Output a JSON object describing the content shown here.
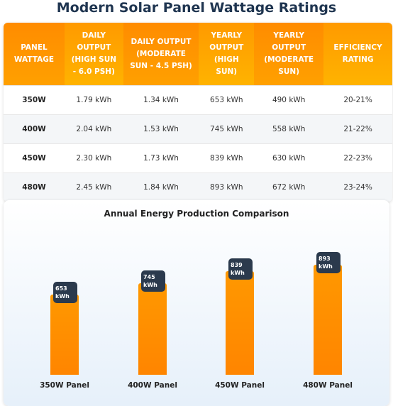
{
  "title": "Modern Solar Panel Wattage Ratings",
  "table": {
    "headers": [
      "PANEL WATTAGE",
      "DAILY OUTPUT (HIGH SUN - 6.0 PSH)",
      "DAILY OUTPUT (MODERATE SUN - 4.5 PSH)",
      "YEARLY OUTPUT (HIGH SUN)",
      "YEARLY OUTPUT (MODERATE SUN)",
      "EFFICIENCY RATING"
    ],
    "rows": [
      [
        "350W",
        "1.79 kWh",
        "1.34 kWh",
        "653 kWh",
        "490 kWh",
        "20-21%"
      ],
      [
        "400W",
        "2.04 kWh",
        "1.53 kWh",
        "745 kWh",
        "558 kWh",
        "21-22%"
      ],
      [
        "450W",
        "2.30 kWh",
        "1.73 kWh",
        "839 kWh",
        "630 kWh",
        "22-23%"
      ],
      [
        "480W",
        "2.45 kWh",
        "1.84 kWh",
        "893 kWh",
        "672 kWh",
        "23-24%"
      ]
    ]
  },
  "chart_data": {
    "type": "bar",
    "title": "Annual Energy Production Comparison",
    "categories": [
      "350W Panel",
      "400W Panel",
      "450W Panel",
      "480W Panel"
    ],
    "values": [
      653,
      745,
      839,
      893
    ],
    "value_labels": [
      "653 kWh",
      "745 kWh",
      "839 kWh",
      "893 kWh"
    ],
    "color": "#ff9800"
  }
}
